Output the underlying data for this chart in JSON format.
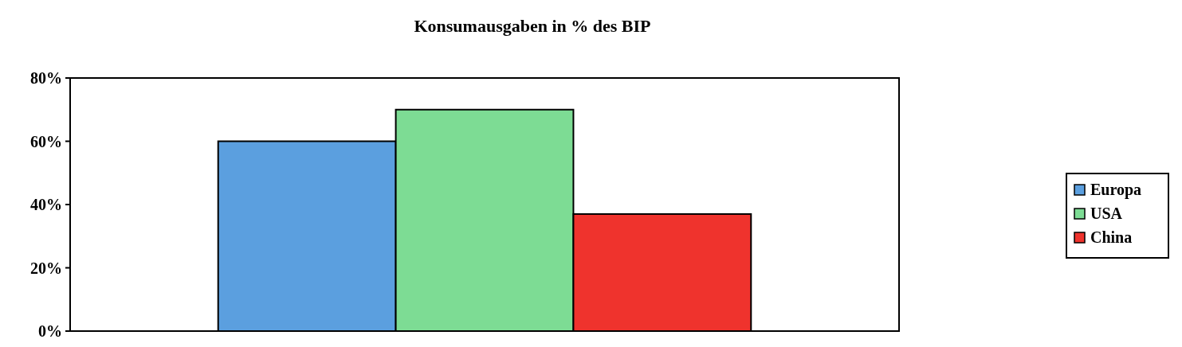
{
  "chart_data": {
    "type": "bar",
    "title": "Konsumausgaben in % des BIP",
    "categories": [
      null
    ],
    "series": [
      {
        "name": "Europa",
        "color": "#5b9fdf",
        "values": [
          60
        ]
      },
      {
        "name": "USA",
        "color": "#7ddc94",
        "values": [
          70
        ]
      },
      {
        "name": "China",
        "color": "#ef332d",
        "values": [
          37
        ]
      }
    ],
    "ylim": [
      0,
      80
    ],
    "yticks": [
      {
        "value": 0,
        "label": "0%"
      },
      {
        "value": 20,
        "label": "20%"
      },
      {
        "value": 40,
        "label": "40%"
      },
      {
        "value": 60,
        "label": "60%"
      },
      {
        "value": 80,
        "label": "80%"
      }
    ],
    "legend": "right"
  }
}
